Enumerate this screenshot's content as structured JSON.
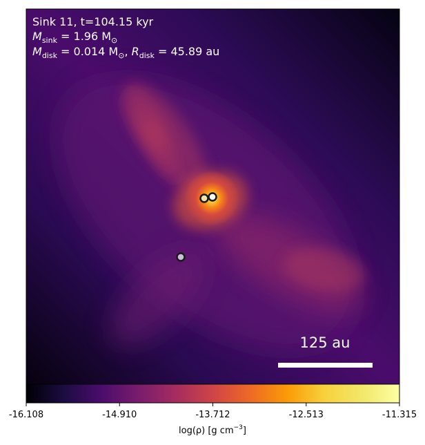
{
  "chart_data": {
    "type": "heatmap",
    "title": "",
    "annotations": {
      "line1": "Sink 11, t=104.15 kyr",
      "line2": {
        "sink_symbol": "M",
        "sink_subscript": "sink",
        "sink_value": " = 1.96 M",
        "sink_sun": "⊙"
      },
      "line3": {
        "disk_mass_symbol": "M",
        "disk_mass_subscript": "disk",
        "disk_mass_value": " = 0.014 M",
        "disk_mass_sun": "⊙",
        "comma": ", ",
        "disk_radius_symbol": "R",
        "disk_radius_subscript": "disk",
        "disk_radius_value": " = 45.89 au"
      }
    },
    "scale_bar": {
      "label": "125 au",
      "length_au": 125
    },
    "colormap": "inferno",
    "colorbar": {
      "label": "log(ρ) [g cm⁻³]",
      "label_base": "log(ρ) [g cm",
      "label_exp": "−3",
      "label_close": "]",
      "min": -16.108,
      "max": -11.315,
      "ticks": [
        -16.108,
        -14.91,
        -13.712,
        -12.513,
        -11.315
      ],
      "tick_labels": [
        "-16.108",
        "-14.910",
        "-13.712",
        "-12.513",
        "-11.315"
      ]
    },
    "sinks": [
      {
        "name": "sink-a",
        "fill": "#f4e2b0"
      },
      {
        "name": "sink-b",
        "fill": "#ffffff"
      },
      {
        "name": "sink-c",
        "fill": "#c9bfd6"
      }
    ],
    "grid": false
  }
}
